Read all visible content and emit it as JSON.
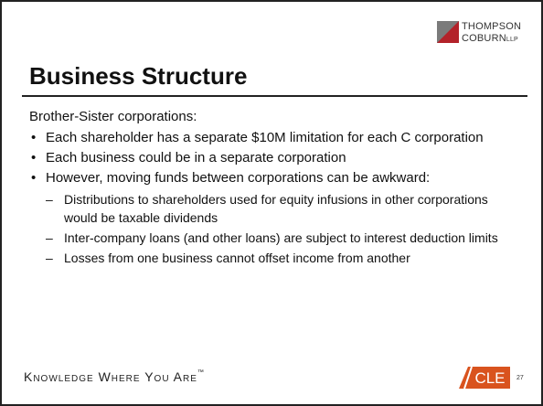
{
  "header": {
    "logo": {
      "line1": "THOMPSON",
      "line2": "COBURN",
      "suffix": "LLP"
    },
    "title": "Business Structure"
  },
  "body": {
    "intro": "Brother-Sister corporations:",
    "bullets": [
      {
        "text": "Each shareholder has a separate $10M limitation for each C corporation",
        "subs": []
      },
      {
        "text": "Each business could be in a separate corporation",
        "subs": []
      },
      {
        "text": "However, moving funds between corporations can be awkward:",
        "subs": [
          "Distributions to shareholders used for equity infusions in other corporations would be taxable dividends",
          "Inter-company loans (and other loans) are subject to interest deduction limits",
          "Losses from one business cannot offset income from another"
        ]
      }
    ]
  },
  "footer": {
    "tagline": "Knowledge Where You Are",
    "trademark": "™",
    "badge": "CLE",
    "page": "27"
  }
}
